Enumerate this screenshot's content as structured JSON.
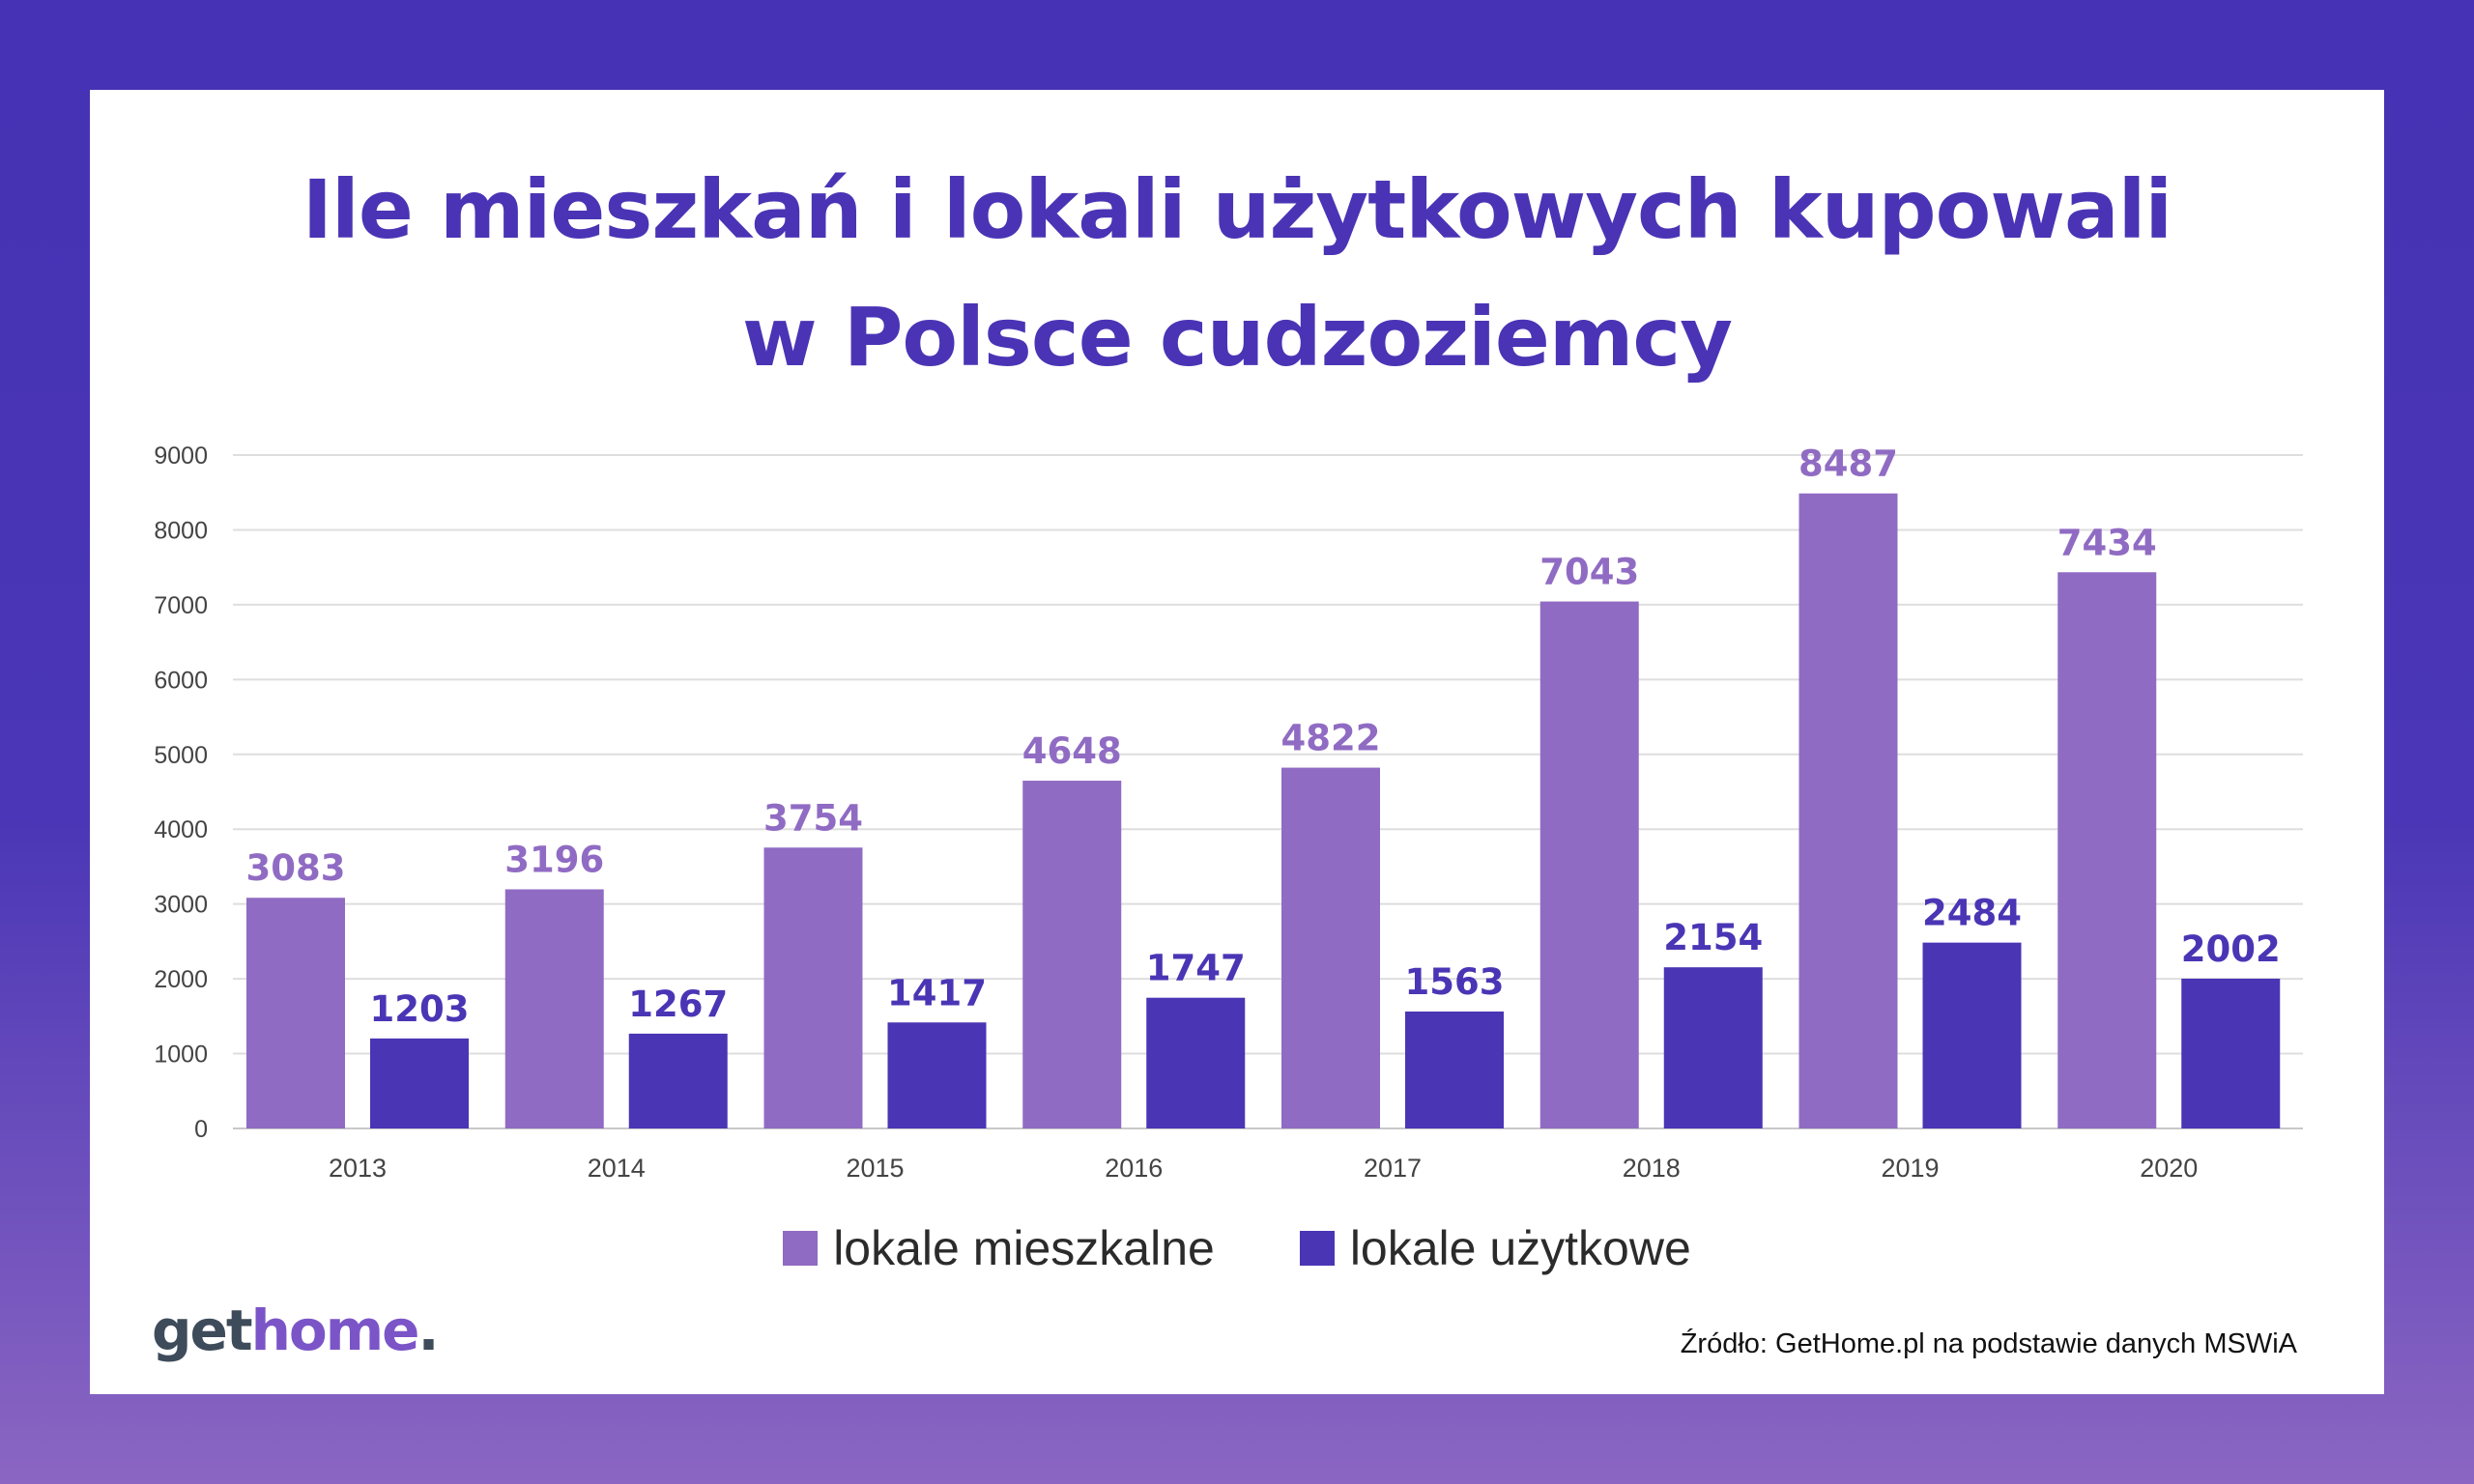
{
  "title_line1": "Ile mieszkań i lokali użytkowych kupowali",
  "title_line2": "w Polsce cudzoziemcy",
  "logo": {
    "part1": "get",
    "part2": "home",
    "part3": "."
  },
  "source": "Źródło: GetHome.pl na podstawie danych MSWiA",
  "colors": {
    "residential": "#906bc3",
    "commercial": "#4a35b5",
    "frame": "#4532b4"
  },
  "chart_data": {
    "type": "bar",
    "title": "Ile mieszkań i lokali użytkowych kupowali w Polsce cudzoziemcy",
    "xlabel": "",
    "ylabel": "",
    "categories": [
      "2013",
      "2014",
      "2015",
      "2016",
      "2017",
      "2018",
      "2019",
      "2020"
    ],
    "series": [
      {
        "name": "lokale mieszkalne",
        "values": [
          3083,
          3196,
          3754,
          4648,
          4822,
          7043,
          8487,
          7434
        ]
      },
      {
        "name": "lokale użytkowe",
        "values": [
          1203,
          1267,
          1417,
          1747,
          1563,
          2154,
          2484,
          2002
        ]
      }
    ],
    "ylim": [
      0,
      9000
    ],
    "yticks": [
      0,
      1000,
      2000,
      3000,
      4000,
      5000,
      6000,
      7000,
      8000,
      9000
    ],
    "grid": true,
    "legend": "bottom-center",
    "data_labels": true
  }
}
